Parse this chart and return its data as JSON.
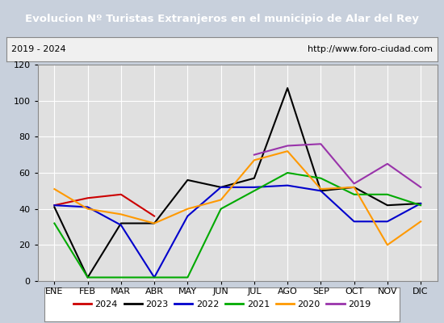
{
  "title": "Evolucion Nº Turistas Extranjeros en el municipio de Alar del Rey",
  "subtitle_left": "2019 - 2024",
  "subtitle_right": "http://www.foro-ciudad.com",
  "months": [
    "ENE",
    "FEB",
    "MAR",
    "ABR",
    "MAY",
    "JUN",
    "JUL",
    "AGO",
    "SEP",
    "OCT",
    "NOV",
    "DIC"
  ],
  "series": {
    "2024": {
      "color": "#cc0000",
      "data": [
        42,
        46,
        48,
        36,
        null,
        null,
        null,
        null,
        null,
        null,
        null,
        null
      ]
    },
    "2023": {
      "color": "#000000",
      "data": [
        41,
        2,
        32,
        32,
        56,
        52,
        57,
        107,
        50,
        52,
        42,
        43
      ]
    },
    "2022": {
      "color": "#0000cc",
      "data": [
        42,
        41,
        31,
        2,
        36,
        52,
        52,
        53,
        50,
        33,
        33,
        43
      ]
    },
    "2021": {
      "color": "#00aa00",
      "data": [
        32,
        2,
        2,
        2,
        2,
        40,
        50,
        60,
        57,
        48,
        48,
        42
      ]
    },
    "2020": {
      "color": "#ff9900",
      "data": [
        51,
        40,
        37,
        32,
        40,
        45,
        67,
        72,
        51,
        52,
        20,
        33
      ]
    },
    "2019": {
      "color": "#9933aa",
      "data": [
        null,
        null,
        null,
        null,
        null,
        null,
        70,
        75,
        76,
        54,
        65,
        52
      ]
    }
  },
  "ylim": [
    0,
    120
  ],
  "yticks": [
    0,
    20,
    40,
    60,
    80,
    100,
    120
  ],
  "title_bg_color": "#4a7fc1",
  "title_text_color": "#ffffff",
  "plot_bg_color": "#e0e0e0",
  "outer_bg_color": "#c8d0dc",
  "info_bar_bg": "#f0f0f0",
  "grid_color": "#ffffff",
  "legend_years": [
    "2024",
    "2023",
    "2022",
    "2021",
    "2020",
    "2019"
  ]
}
